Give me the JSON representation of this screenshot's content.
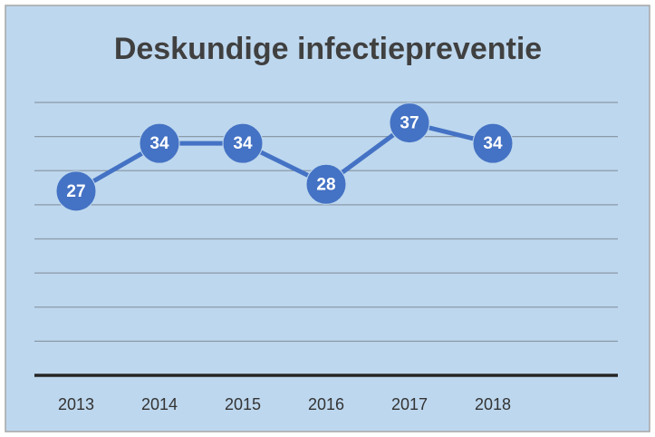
{
  "chart_data": {
    "type": "line",
    "title": "Deskundige infectiepreventie",
    "categories": [
      "2013",
      "2014",
      "2015",
      "2016",
      "2017",
      "2018",
      null
    ],
    "values": [
      27,
      34,
      34,
      28,
      37,
      34,
      null
    ],
    "color": "#4472c4",
    "ylim": [
      0,
      40
    ],
    "yticks": [
      0,
      5,
      10,
      15,
      20,
      25,
      30,
      35,
      40
    ],
    "grid": true
  }
}
